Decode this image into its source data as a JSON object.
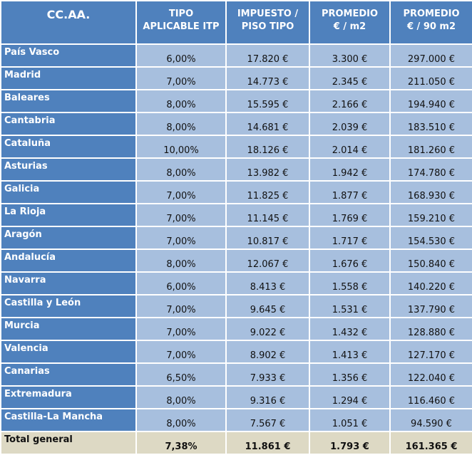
{
  "headers": [
    "CC.AA.",
    "TIPO\nAPLICABLE ITP",
    "IMPUESTO /\nPISO TIPO",
    "PROMEDIO\n€ / m2",
    "PROMEDIO\n€ / 90 m2"
  ],
  "rows": [
    [
      "País Vasco",
      "6,00%",
      "17.820 €",
      "3.300 €",
      "297.000 €"
    ],
    [
      "Madrid",
      "7,00%",
      "14.773 €",
      "2.345 €",
      "211.050 €"
    ],
    [
      "Baleares",
      "8,00%",
      "15.595 €",
      "2.166 €",
      "194.940 €"
    ],
    [
      "Cantabria",
      "8,00%",
      "14.681 €",
      "2.039 €",
      "183.510 €"
    ],
    [
      "Cataluña",
      "10,00%",
      "18.126 €",
      "2.014 €",
      "181.260 €"
    ],
    [
      "Asturias",
      "8,00%",
      "13.982 €",
      "1.942 €",
      "174.780 €"
    ],
    [
      "Galicia",
      "7,00%",
      "11.825 €",
      "1.877 €",
      "168.930 €"
    ],
    [
      "La Rioja",
      "7,00%",
      "11.145 €",
      "1.769 €",
      "159.210 €"
    ],
    [
      "Aragón",
      "7,00%",
      "10.817 €",
      "1.717 €",
      "154.530 €"
    ],
    [
      "Andalucía",
      "8,00%",
      "12.067 €",
      "1.676 €",
      "150.840 €"
    ],
    [
      "Navarra",
      "6,00%",
      "8.413 €",
      "1.558 €",
      "140.220 €"
    ],
    [
      "Castilla y León",
      "7,00%",
      "9.645 €",
      "1.531 €",
      "137.790 €"
    ],
    [
      "Murcia",
      "7,00%",
      "9.022 €",
      "1.432 €",
      "128.880 €"
    ],
    [
      "Valencia",
      "7,00%",
      "8.902 €",
      "1.413 €",
      "127.170 €"
    ],
    [
      "Canarias",
      "6,50%",
      "7.933 €",
      "1.356 €",
      "122.040 €"
    ],
    [
      "Extremadura",
      "8,00%",
      "9.316 €",
      "1.294 €",
      "116.460 €"
    ],
    [
      "Castilla-La Mancha",
      "8,00%",
      "7.567 €",
      "1.051 €",
      "94.590 €"
    ]
  ],
  "total": [
    "Total general",
    "7,38%",
    "11.861 €",
    "1.793 €",
    "161.365 €"
  ]
}
